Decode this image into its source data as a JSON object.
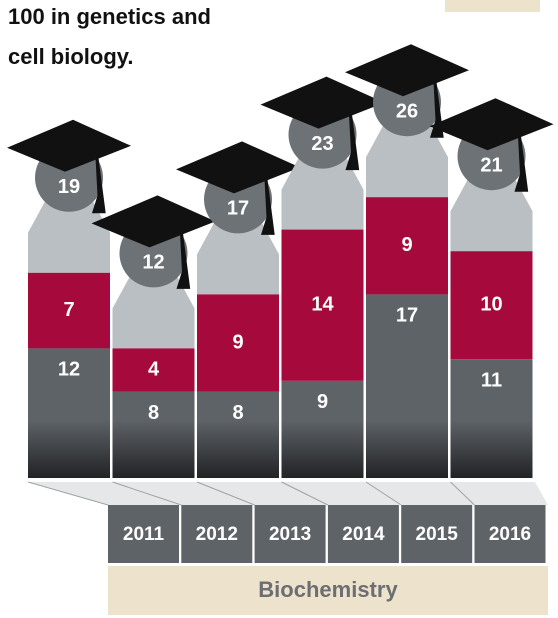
{
  "chart_data": {
    "type": "stacked-bar",
    "title_lines": [
      "100 in genetics and",
      "cell biology."
    ],
    "categories": [
      "2011",
      "2012",
      "2013",
      "2014",
      "2015",
      "2016"
    ],
    "series": [
      {
        "color": "#5e6368",
        "values": [
          12,
          8,
          8,
          9,
          17,
          11
        ]
      },
      {
        "color": "#a6093b",
        "values": [
          7,
          4,
          9,
          14,
          9,
          10
        ]
      }
    ],
    "totals": [
      19,
      12,
      17,
      23,
      26,
      21
    ],
    "footer": "Biochemistry"
  }
}
